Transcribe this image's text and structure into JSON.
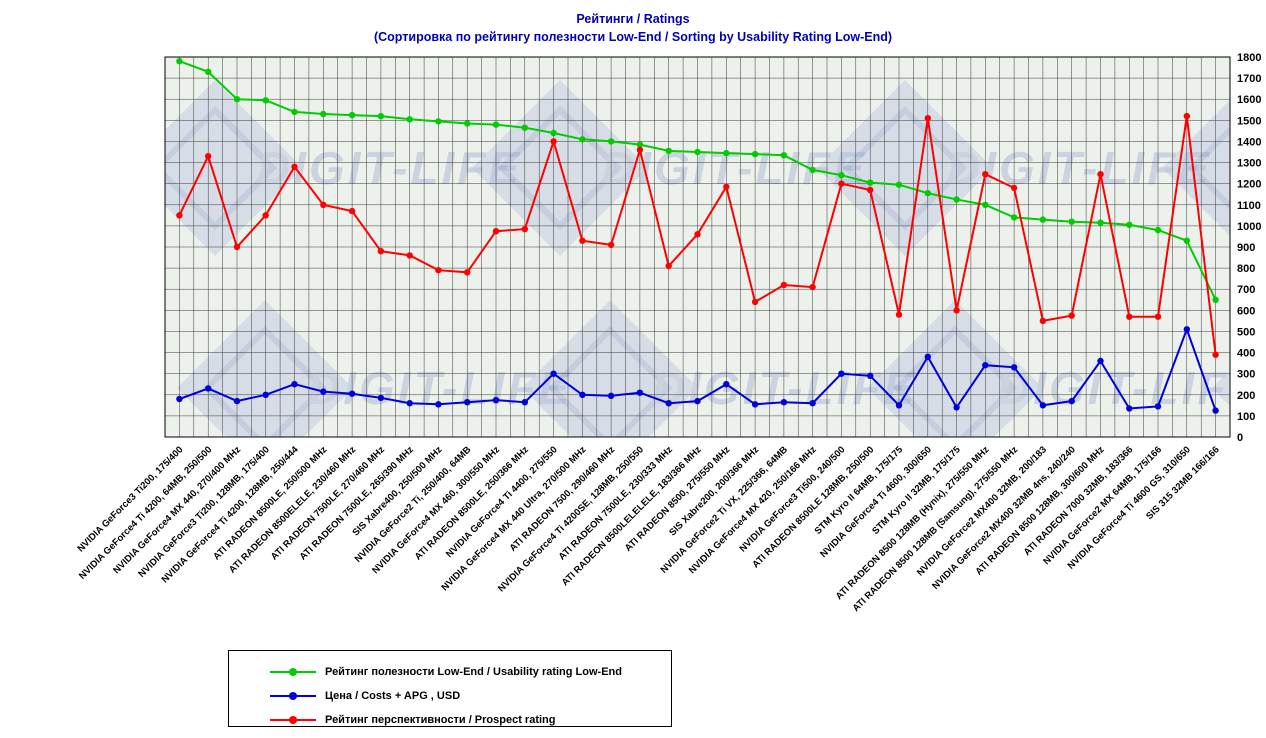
{
  "title": {
    "line1": "Рейтинги / Ratings",
    "line2": "(Сортировка по рейтингу полезности Low-End / Sorting by Usability Rating Low-End)"
  },
  "watermark_text": "DIGIT-LIFE",
  "colors": {
    "title": "#0000bb",
    "plot_bg": "#edf1ec",
    "grid": "#3a3a3a",
    "axis_text": "#000000",
    "watermark": "#b9c3de"
  },
  "chart_data": {
    "type": "line",
    "title": "Рейтинги / Ratings (Сортировка по рейтингу полезности Low-End / Sorting by Usability Rating Low-End)",
    "xlabel": "",
    "ylabel": "",
    "ylim": [
      0,
      1800
    ],
    "ytick_step": 100,
    "grid": true,
    "legend_position": "bottom",
    "categories": [
      "NVIDIA GeForce3 Ti200, 175/400",
      "NVIDIA GeForce4 Ti 4200, 64MB, 250/500",
      "NVIDIA GeForce4 MX 440, 270/400 MHz",
      "NVIDIA GeForce3 Ti200, 128MB, 175/400",
      "NVIDIA GeForce4 Ti 4200, 128MB, 250/444",
      "ATI RADEON 8500LE, 250/500 MHz",
      "ATI RADEON 8500ELELE, 230/460 MHz",
      "ATI RADEON 7500LE, 270/460 MHz",
      "ATI RADEON 7500LE, 265/390 MHz",
      "SIS Xabre400, 250/500 MHz",
      "NVIDIA GeForce2 Ti, 250/400, 64MB",
      "NVIDIA GeForce4 MX 460, 300/550 MHz",
      "ATI RADEON 8500LE, 250/366 MHz",
      "NVIDIA GeForce4 Ti 4400, 275/550",
      "NVIDIA GeForce4 MX 440 Ultra, 270/500 MHz",
      "ATI RADEON 7500, 290/460 MHz",
      "NVIDIA GeForce4 Ti 4200SE, 128MB, 250/550",
      "ATI RADEON 7500LE, 230/333 MHz",
      "ATI RADEON 8500LELELELE, 183/366 MHz",
      "ATI RADEON 8500, 275/550 MHz",
      "SIS Xabre200, 200/366 MHz",
      "NVIDIA GeForce2 Ti VX, 225/366, 64MB",
      "NVIDIA GeForce4 MX 420, 250/166 MHz",
      "NVIDIA GeForce3 Ti500, 240/500",
      "ATI RADEON 8500LE 128MB, 250/500",
      "STM Kyro II 64MB, 175/175",
      "NVIDIA GeForce4 Ti 4600, 300/650",
      "STM Kyro II 32MB, 175/175",
      "ATI RADEON 8500 128MB (Hynix), 275/550 MHz",
      "ATI RADEON 8500 128MB (Samsung), 275/550 MHz",
      "NVIDIA GeForce2 MX400 32MB, 200/183",
      "NVIDIA GeForce2 MX400 32MB 4ns, 240/240",
      "ATI RADEON 8500 128MB, 300/600 MHz",
      "ATI RADEON 7000 32MB, 183/366",
      "NVIDIA GeForce2 MX 64MB, 175/166",
      "NVIDIA GeForce4 Ti 4600 GS, 310/650",
      "SIS 315 32MB 166/166"
    ],
    "series": [
      {
        "name": "Рейтинг полезности Low-End / Usability rating Low-End",
        "color": "#00cc00",
        "values": [
          1780,
          1730,
          1600,
          1595,
          1540,
          1530,
          1525,
          1520,
          1505,
          1495,
          1485,
          1480,
          1465,
          1440,
          1410,
          1400,
          1385,
          1355,
          1350,
          1345,
          1340,
          1335,
          1265,
          1240,
          1205,
          1195,
          1155,
          1125,
          1100,
          1040,
          1030,
          1020,
          1015,
          1005,
          980,
          930,
          650
        ]
      },
      {
        "name": "Цена / Costs + APG , USD",
        "color": "#0000dd",
        "values": [
          180,
          230,
          170,
          200,
          250,
          215,
          205,
          185,
          160,
          155,
          165,
          175,
          165,
          300,
          200,
          195,
          210,
          160,
          170,
          250,
          155,
          165,
          160,
          300,
          290,
          150,
          380,
          140,
          340,
          330,
          150,
          170,
          360,
          135,
          145,
          510,
          125
        ]
      },
      {
        "name": "Рейтинг перспективности / Prospect rating",
        "color": "#ff0000",
        "values": [
          1050,
          1330,
          900,
          1050,
          1280,
          1100,
          1070,
          880,
          860,
          790,
          780,
          975,
          985,
          1400,
          930,
          910,
          1360,
          810,
          960,
          1185,
          640,
          720,
          710,
          1200,
          1170,
          580,
          1510,
          600,
          1245,
          1180,
          550,
          575,
          1245,
          570,
          570,
          1520,
          390
        ]
      }
    ]
  }
}
